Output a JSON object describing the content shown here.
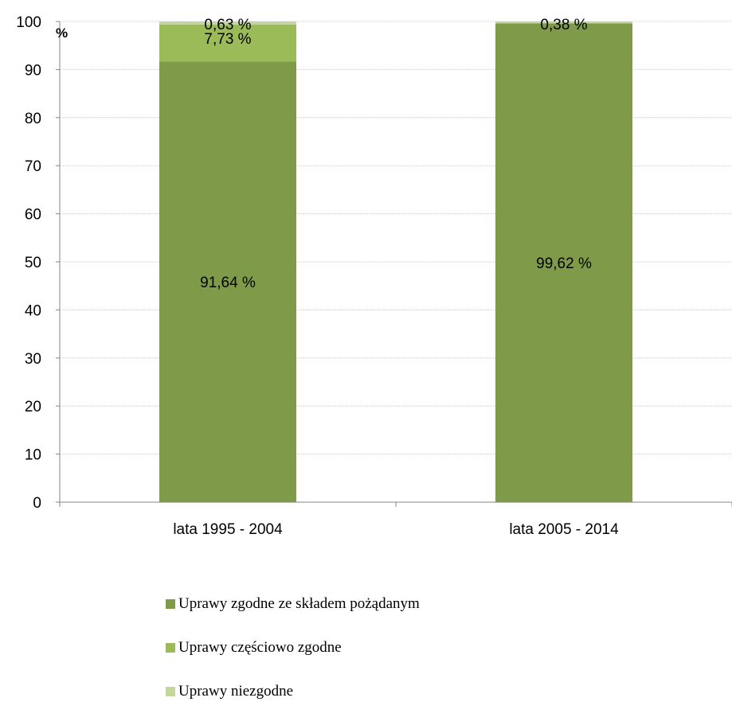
{
  "chart_data": {
    "type": "bar",
    "stacked": true,
    "unit_label": "%",
    "ylim": [
      0,
      100
    ],
    "yticks": [
      0,
      10,
      20,
      30,
      40,
      50,
      60,
      70,
      80,
      90,
      100
    ],
    "grid": true,
    "categories": [
      "lata 1995 - 2004",
      "lata 2005 - 2014"
    ],
    "series": [
      {
        "name": "Uprawy zgodne ze składem pożądanym",
        "values": [
          91.64,
          99.62
        ],
        "labels": [
          "91,64 %",
          "99,62 %"
        ],
        "color": "#7f9b4a"
      },
      {
        "name": "Uprawy częściowo zgodne",
        "values": [
          7.73,
          0
        ],
        "labels": [
          "7,73 %",
          ""
        ],
        "color": "#9bbb59"
      },
      {
        "name": "Uprawy niezgodne",
        "values": [
          0.63,
          0.38
        ],
        "labels": [
          "0,63 %",
          "0,38 %"
        ],
        "color": "#c3d69b"
      }
    ],
    "legend_position": "bottom-center"
  }
}
